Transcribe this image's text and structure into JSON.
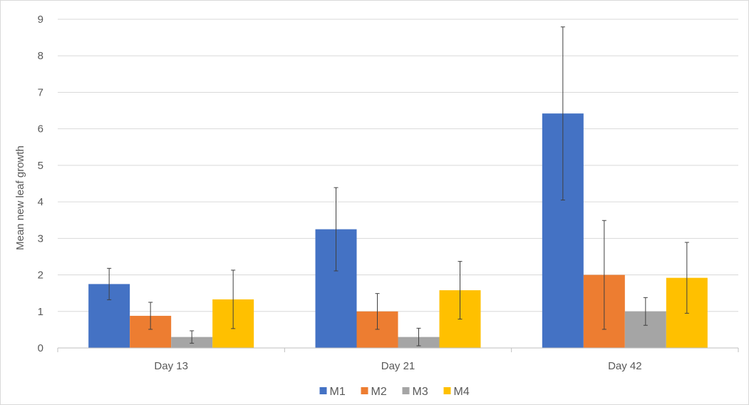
{
  "chart_data": {
    "type": "bar",
    "title": "",
    "xlabel": "",
    "ylabel": "Mean new leaf growth",
    "categories": [
      "Day 13",
      "Day 21",
      "Day 42"
    ],
    "ylim": [
      0,
      9
    ],
    "yticks": [
      0,
      1,
      2,
      3,
      4,
      5,
      6,
      7,
      8,
      9
    ],
    "grid": "horizontal",
    "legend_position": "bottom",
    "series": [
      {
        "name": "M1",
        "color": "#4472C4",
        "values": [
          1.75,
          3.25,
          6.42
        ],
        "error_low": [
          1.32,
          2.11,
          4.05
        ],
        "error_high": [
          2.18,
          4.39,
          8.79
        ]
      },
      {
        "name": "M2",
        "color": "#ED7D31",
        "values": [
          0.88,
          1.0,
          2.0
        ],
        "error_low": [
          0.51,
          0.51,
          0.51
        ],
        "error_high": [
          1.25,
          1.49,
          3.49
        ]
      },
      {
        "name": "M3",
        "color": "#A5A5A5",
        "values": [
          0.3,
          0.3,
          1.0
        ],
        "error_low": [
          0.13,
          0.06,
          0.62
        ],
        "error_high": [
          0.47,
          0.54,
          1.38
        ]
      },
      {
        "name": "M4",
        "color": "#FFC000",
        "values": [
          1.33,
          1.58,
          1.92
        ],
        "error_low": [
          0.53,
          0.79,
          0.95
        ],
        "error_high": [
          2.13,
          2.37,
          2.89
        ]
      }
    ]
  }
}
